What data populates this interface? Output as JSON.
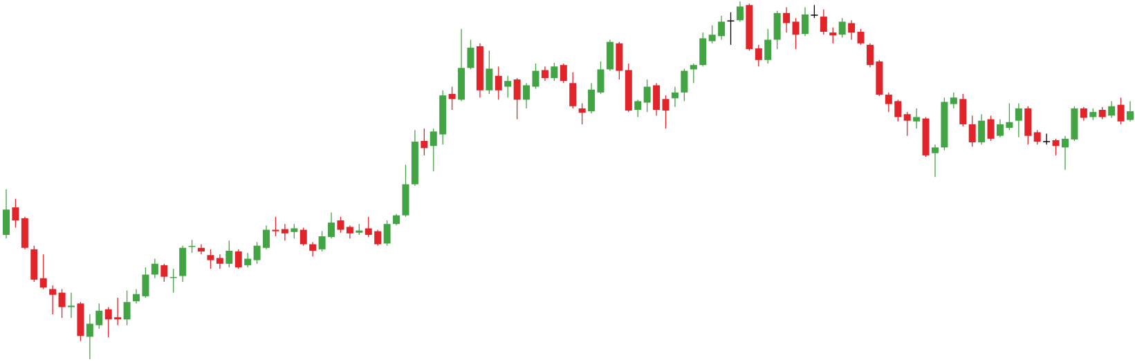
{
  "chart_data": {
    "type": "candlestick",
    "open": [
      175,
      213,
      198,
      155,
      115,
      100,
      95,
      75,
      80,
      34,
      50,
      72,
      61,
      58,
      83,
      90,
      120,
      133,
      116,
      118,
      159,
      157,
      147,
      143,
      135,
      152,
      133,
      140,
      157,
      182,
      183,
      179,
      182,
      162,
      155,
      172,
      195,
      186,
      178,
      184,
      180,
      163,
      190,
      202,
      245,
      305,
      298,
      314,
      370,
      362,
      406,
      436,
      375,
      395,
      380,
      390,
      362,
      380,
      403,
      392,
      410,
      385,
      350,
      346,
      372,
      404,
      440,
      403,
      348,
      358,
      382,
      363,
      364,
      372,
      404,
      410,
      443,
      450,
      471,
      472,
      493,
      433,
      417,
      445,
      482,
      470,
      453,
      479,
      477,
      455,
      452,
      468,
      456,
      438,
      415,
      369,
      360,
      342,
      332,
      336,
      288,
      296,
      356,
      363,
      328,
      303,
      335,
      312,
      323,
      333,
      350,
      317,
      304,
      306,
      296,
      307,
      350,
      338,
      348,
      340,
      355,
      334
    ],
    "high": [
      238,
      225,
      200,
      160,
      148,
      105,
      100,
      95,
      82,
      65,
      80,
      75,
      88,
      98,
      100,
      130,
      142,
      135,
      128,
      160,
      168,
      162,
      155,
      148,
      167,
      155,
      150,
      165,
      188,
      200,
      190,
      190,
      185,
      165,
      180,
      206,
      200,
      188,
      190,
      200,
      182,
      195,
      204,
      272,
      320,
      322,
      322,
      375,
      380,
      460,
      445,
      440,
      430,
      408,
      395,
      392,
      385,
      412,
      408,
      413,
      412,
      400,
      357,
      385,
      415,
      445,
      442,
      412,
      362,
      390,
      385,
      368,
      380,
      405,
      412,
      455,
      465,
      478,
      483,
      498,
      495,
      438,
      460,
      485,
      490,
      475,
      490,
      493,
      487,
      462,
      475,
      472,
      460,
      440,
      417,
      372,
      362,
      345,
      350,
      338,
      300,
      365,
      372,
      370,
      340,
      342,
      340,
      335,
      357,
      357,
      353,
      320,
      315,
      308,
      312,
      353,
      352,
      350,
      352,
      360,
      365,
      360
    ],
    "low": [
      170,
      185,
      155,
      110,
      100,
      65,
      60,
      60,
      28,
      3,
      45,
      33,
      50,
      50,
      80,
      88,
      115,
      110,
      95,
      110,
      150,
      148,
      128,
      128,
      130,
      128,
      130,
      135,
      155,
      173,
      167,
      170,
      160,
      145,
      152,
      170,
      178,
      170,
      175,
      172,
      160,
      160,
      188,
      200,
      243,
      285,
      263,
      300,
      348,
      360,
      404,
      365,
      370,
      362,
      365,
      335,
      350,
      377,
      388,
      388,
      385,
      350,
      328,
      343,
      370,
      402,
      390,
      345,
      338,
      345,
      340,
      322,
      352,
      360,
      385,
      408,
      440,
      445,
      438,
      470,
      430,
      408,
      412,
      432,
      455,
      432,
      450,
      475,
      452,
      440,
      448,
      445,
      438,
      407,
      367,
      345,
      332,
      312,
      322,
      283,
      255,
      292,
      350,
      325,
      297,
      300,
      305,
      310,
      320,
      310,
      300,
      300,
      300,
      285,
      265,
      305,
      333,
      334,
      335,
      337,
      328,
      332
    ],
    "close": [
      210,
      195,
      157,
      113,
      102,
      92,
      75,
      77,
      35,
      52,
      70,
      58,
      58,
      82,
      93,
      120,
      135,
      117,
      117,
      157,
      160,
      152,
      140,
      135,
      153,
      130,
      142,
      160,
      182,
      180,
      177,
      184,
      162,
      153,
      173,
      192,
      182,
      177,
      181,
      175,
      162,
      190,
      202,
      245,
      304,
      295,
      318,
      368,
      363,
      406,
      434,
      375,
      405,
      375,
      388,
      362,
      382,
      402,
      392,
      408,
      388,
      353,
      344,
      376,
      404,
      442,
      402,
      347,
      360,
      380,
      348,
      347,
      372,
      402,
      410,
      447,
      452,
      470,
      471,
      491,
      432,
      417,
      445,
      482,
      468,
      452,
      480,
      479,
      456,
      451,
      470,
      455,
      440,
      410,
      369,
      356,
      338,
      333,
      338,
      285,
      296,
      359,
      365,
      328,
      303,
      333,
      308,
      328,
      331,
      350,
      312,
      304,
      304,
      298,
      308,
      350,
      337,
      345,
      338,
      353,
      332,
      346
    ],
    "up_color": "#43a443",
    "down_color": "#e0242a",
    "flat_color": "#000000",
    "ylim": [
      0,
      500
    ]
  }
}
